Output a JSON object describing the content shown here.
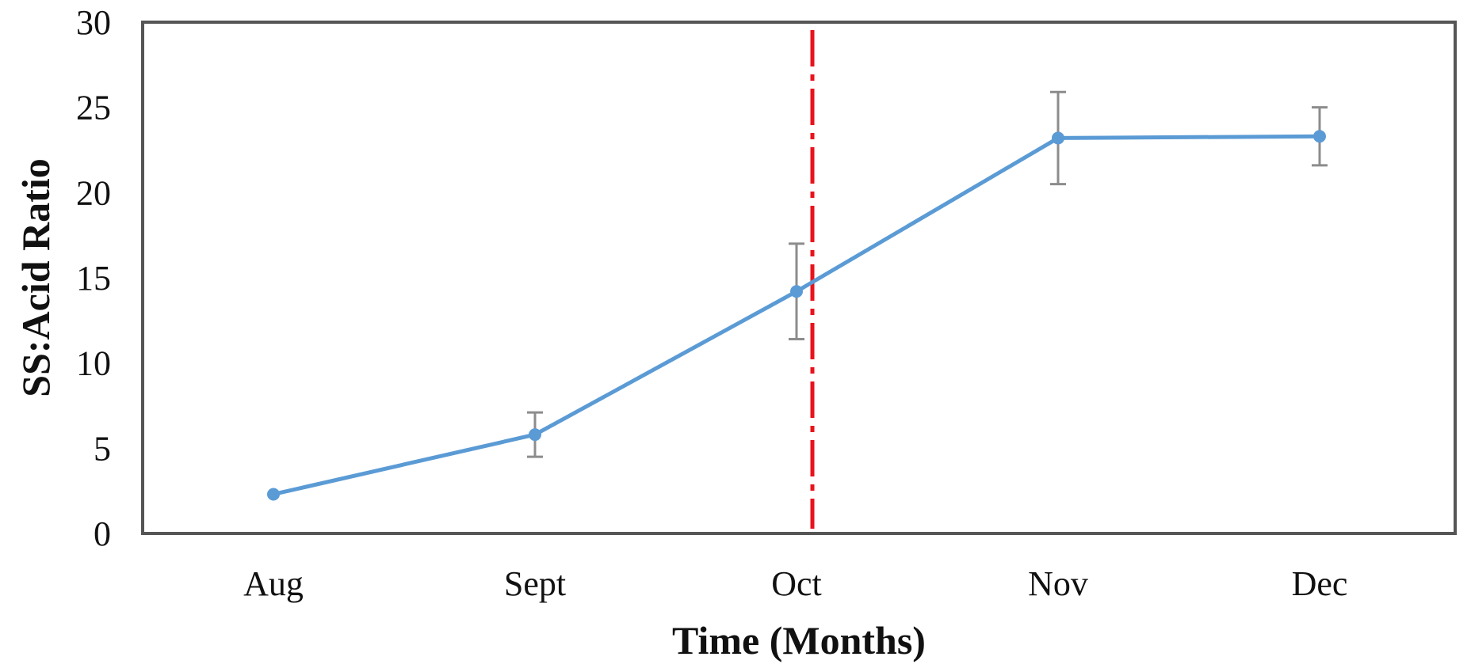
{
  "chart_data": {
    "type": "line",
    "title": "",
    "xlabel": "Time (Months)",
    "ylabel": "SS:Acid Ratio",
    "categories": [
      "Aug",
      "Sept",
      "Oct",
      "Nov",
      "Dec"
    ],
    "series": [
      {
        "values": [
          2.3,
          5.8,
          14.2,
          23.2,
          23.3
        ],
        "error": [
          0,
          1.3,
          2.8,
          2.7,
          1.7
        ],
        "color": "#5b9bd5"
      }
    ],
    "ylim": [
      0,
      30
    ],
    "yticks": [
      "0",
      "5",
      "10",
      "15",
      "20",
      "25",
      "30"
    ],
    "grid": false,
    "reference_line": {
      "at_category": "Oct",
      "color": "#e8131b",
      "style": "dash-dot"
    },
    "colors": {
      "series": "#5b9bd5",
      "error_bar": "#8c8c8c",
      "reference_line": "#e8131b",
      "frame": "#555555"
    }
  }
}
